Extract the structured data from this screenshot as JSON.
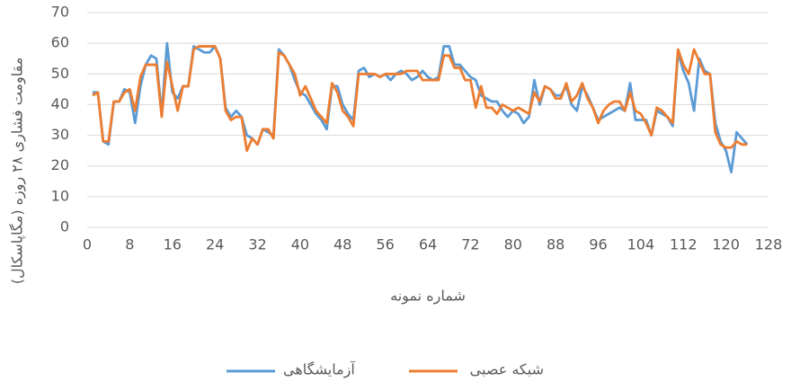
{
  "chart_data": {
    "type": "line",
    "y_label": "مقاومت فشاری ۲۸ روزه (مگاپاسکال)",
    "x_label": "شماره نمونه",
    "x": [
      1,
      2,
      3,
      4,
      5,
      6,
      7,
      8,
      9,
      10,
      11,
      12,
      13,
      14,
      15,
      16,
      17,
      18,
      19,
      20,
      21,
      22,
      23,
      24,
      25,
      26,
      27,
      28,
      29,
      30,
      31,
      32,
      33,
      34,
      35,
      36,
      37,
      38,
      39,
      40,
      41,
      42,
      43,
      44,
      45,
      46,
      47,
      48,
      49,
      50,
      51,
      52,
      53,
      54,
      55,
      56,
      57,
      58,
      59,
      60,
      61,
      62,
      63,
      64,
      65,
      66,
      67,
      68,
      69,
      70,
      71,
      72,
      73,
      74,
      75,
      76,
      77,
      78,
      79,
      80,
      81,
      82,
      83,
      84,
      85,
      86,
      87,
      88,
      89,
      90,
      91,
      92,
      93,
      94,
      95,
      96,
      97,
      98,
      99,
      100,
      101,
      102,
      103,
      104,
      105,
      106,
      107,
      108,
      109,
      110,
      111,
      112,
      113,
      114,
      115,
      116,
      117,
      118,
      119,
      120,
      121,
      122,
      123,
      124
    ],
    "series": [
      {
        "name": "آزمایشگاهی",
        "color": "#5b9bd5",
        "values": [
          44,
          44,
          28,
          27,
          41,
          41,
          45,
          44,
          34,
          46,
          53,
          56,
          55,
          37,
          60,
          44,
          42,
          46,
          46,
          59,
          58,
          57,
          57,
          59,
          55,
          39,
          36,
          38,
          36,
          30,
          29,
          27,
          32,
          31,
          30,
          58,
          56,
          53,
          48,
          44,
          43,
          40,
          37,
          35,
          32,
          46,
          46,
          40,
          37,
          35,
          51,
          52,
          49,
          50,
          49,
          50,
          48,
          50,
          51,
          50,
          48,
          49,
          51,
          49,
          48,
          49,
          59,
          59,
          53,
          53,
          51,
          49,
          48,
          43,
          42,
          41,
          41,
          38,
          36,
          38,
          37,
          34,
          36,
          48,
          40,
          46,
          45,
          43,
          43,
          46,
          40,
          38,
          46,
          43,
          39,
          35,
          36,
          37,
          38,
          39,
          38,
          47,
          35,
          35,
          35,
          30,
          38,
          37,
          36,
          33,
          57,
          51,
          47,
          38,
          55,
          51,
          50,
          34,
          28,
          25,
          18,
          31,
          29,
          27
        ]
      },
      {
        "name": "شبکه عصبی",
        "color": "#ed7d31",
        "values": [
          43,
          44,
          28,
          28,
          41,
          41,
          44,
          45,
          38,
          49,
          53,
          53,
          53,
          36,
          54,
          46,
          38,
          46,
          46,
          58,
          59,
          59,
          59,
          59,
          55,
          38,
          35,
          36,
          36,
          25,
          29,
          27,
          32,
          32,
          29,
          57,
          56,
          53,
          50,
          43,
          46,
          42,
          38,
          36,
          34,
          47,
          44,
          38,
          36,
          33,
          50,
          50,
          50,
          50,
          49,
          50,
          50,
          50,
          50,
          51,
          51,
          51,
          48,
          48,
          48,
          48,
          56,
          56,
          52,
          52,
          48,
          48,
          39,
          46,
          39,
          39,
          37,
          40,
          39,
          38,
          39,
          38,
          37,
          44,
          41,
          46,
          45,
          42,
          42,
          47,
          41,
          43,
          47,
          42,
          39,
          34,
          38,
          40,
          41,
          41,
          38,
          44,
          38,
          37,
          34,
          30,
          39,
          38,
          36,
          34,
          58,
          53,
          50,
          58,
          54,
          50,
          50,
          31,
          27,
          26,
          26,
          28,
          27,
          27
        ]
      }
    ],
    "xlim": [
      0,
      128
    ],
    "xticks": [
      0,
      8,
      16,
      24,
      32,
      40,
      48,
      56,
      64,
      72,
      80,
      88,
      96,
      104,
      112,
      120,
      128
    ],
    "ylim": [
      0,
      70
    ],
    "yticks": [
      0,
      10,
      20,
      30,
      40,
      50,
      60,
      70
    ],
    "grid": true,
    "legend": "bottom"
  }
}
